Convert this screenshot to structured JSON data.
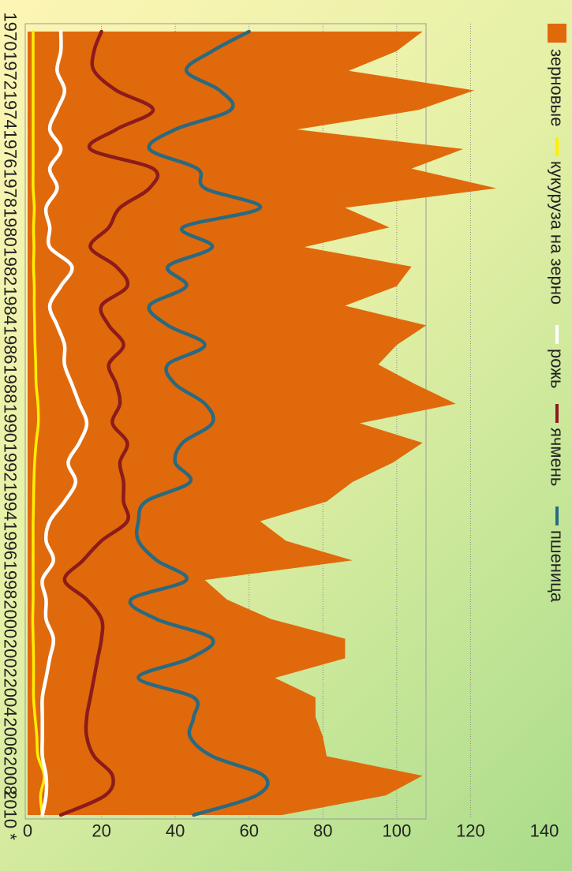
{
  "chart_data": {
    "type": "area",
    "orientation": "rotated 90° clockwise",
    "title": "",
    "xlabel": "",
    "ylabel": "",
    "ylim": [
      0,
      140
    ],
    "y_ticks": [
      0,
      20,
      40,
      60,
      80,
      100,
      120,
      140
    ],
    "x_ticks": [
      "1970",
      "1972",
      "1974",
      "1976",
      "1978",
      "1980",
      "1982",
      "1984",
      "1986",
      "1988",
      "1990",
      "1992",
      "1994",
      "1996",
      "1998",
      "2000",
      "2002",
      "2004",
      "2006",
      "2008",
      "2010 *"
    ],
    "grid": true,
    "legend_position": "bottom",
    "x": [
      1970,
      1971,
      1972,
      1973,
      1974,
      1975,
      1976,
      1977,
      1978,
      1979,
      1980,
      1981,
      1982,
      1983,
      1984,
      1985,
      1986,
      1987,
      1988,
      1989,
      1990,
      1991,
      1992,
      1993,
      1994,
      1995,
      1996,
      1997,
      1998,
      1999,
      2000,
      2001,
      2002,
      2003,
      2004,
      2005,
      2006,
      2007,
      2008,
      2009,
      2010
    ],
    "series": [
      {
        "name": "зерновые",
        "kind": "area",
        "color": "#e0690c",
        "values": [
          107,
          100,
          87,
          121,
          106,
          73,
          118,
          104,
          127,
          86,
          98,
          75,
          104,
          100,
          86,
          108,
          100,
          95,
          105,
          116,
          90,
          107,
          99,
          88,
          81,
          63,
          70,
          88,
          48,
          54,
          66,
          86,
          86,
          67,
          78,
          78,
          80,
          81,
          107,
          97,
          69
        ]
      },
      {
        "name": "кукуруза на зерно",
        "kind": "line",
        "color": "#ffee00",
        "values": [
          1.5,
          1.5,
          1.5,
          1.5,
          1.5,
          1.5,
          1.5,
          1.5,
          1.5,
          1.8,
          1.6,
          1.7,
          1.6,
          1.8,
          1.8,
          1.9,
          2,
          2.2,
          2.3,
          2.8,
          2.9,
          2.3,
          1.9,
          1.7,
          1.6,
          1.5,
          1.5,
          1.5,
          1.5,
          1.5,
          1.4,
          1.5,
          1.6,
          1.6,
          1.6,
          2,
          2.5,
          2.8,
          4.5,
          3.5,
          4
        ]
      },
      {
        "name": "рожь",
        "kind": "line",
        "color": "#ffffff",
        "values": [
          9,
          9,
          8,
          10,
          8,
          6,
          9,
          6,
          8,
          5,
          6,
          6,
          12,
          9,
          6,
          8,
          10,
          10,
          12,
          14,
          16,
          14,
          11,
          13,
          10,
          6,
          5,
          7,
          4,
          5,
          5,
          7,
          6,
          5,
          4,
          4,
          4,
          4,
          5,
          5,
          4
        ]
      },
      {
        "name": "ячмень",
        "kind": "line",
        "color": "#8c1b1b",
        "values": [
          20,
          18,
          18,
          24,
          34,
          24,
          17,
          34,
          33,
          25,
          22,
          17,
          24,
          27,
          20,
          22,
          26,
          22,
          24,
          25,
          23,
          27,
          25,
          26,
          26,
          27,
          20,
          15,
          10,
          16,
          20,
          20,
          19,
          18,
          17,
          16,
          16,
          18,
          23,
          21,
          9
        ]
      },
      {
        "name": "пшеница",
        "kind": "line",
        "color": "#2a6a80",
        "values": [
          60,
          50,
          43,
          52,
          55,
          40,
          33,
          46,
          48,
          63,
          42,
          50,
          38,
          43,
          33,
          38,
          48,
          38,
          40,
          48,
          50,
          42,
          40,
          44,
          32,
          30,
          30,
          35,
          43,
          28,
          35,
          50,
          44,
          30,
          45,
          45,
          44,
          50,
          64,
          62,
          45
        ]
      }
    ]
  },
  "legend": {
    "items": [
      {
        "label": "зерновые",
        "color": "#e0690c",
        "marker": "square"
      },
      {
        "label": "кукуруза на зерно",
        "color": "#ffee00",
        "marker": "line"
      },
      {
        "label": "рожь",
        "color": "#ffffff",
        "marker": "line"
      },
      {
        "label": "ячмень",
        "color": "#8c1b1b",
        "marker": "line"
      },
      {
        "label": "пшеница",
        "color": "#2a6a80",
        "marker": "line"
      }
    ]
  }
}
